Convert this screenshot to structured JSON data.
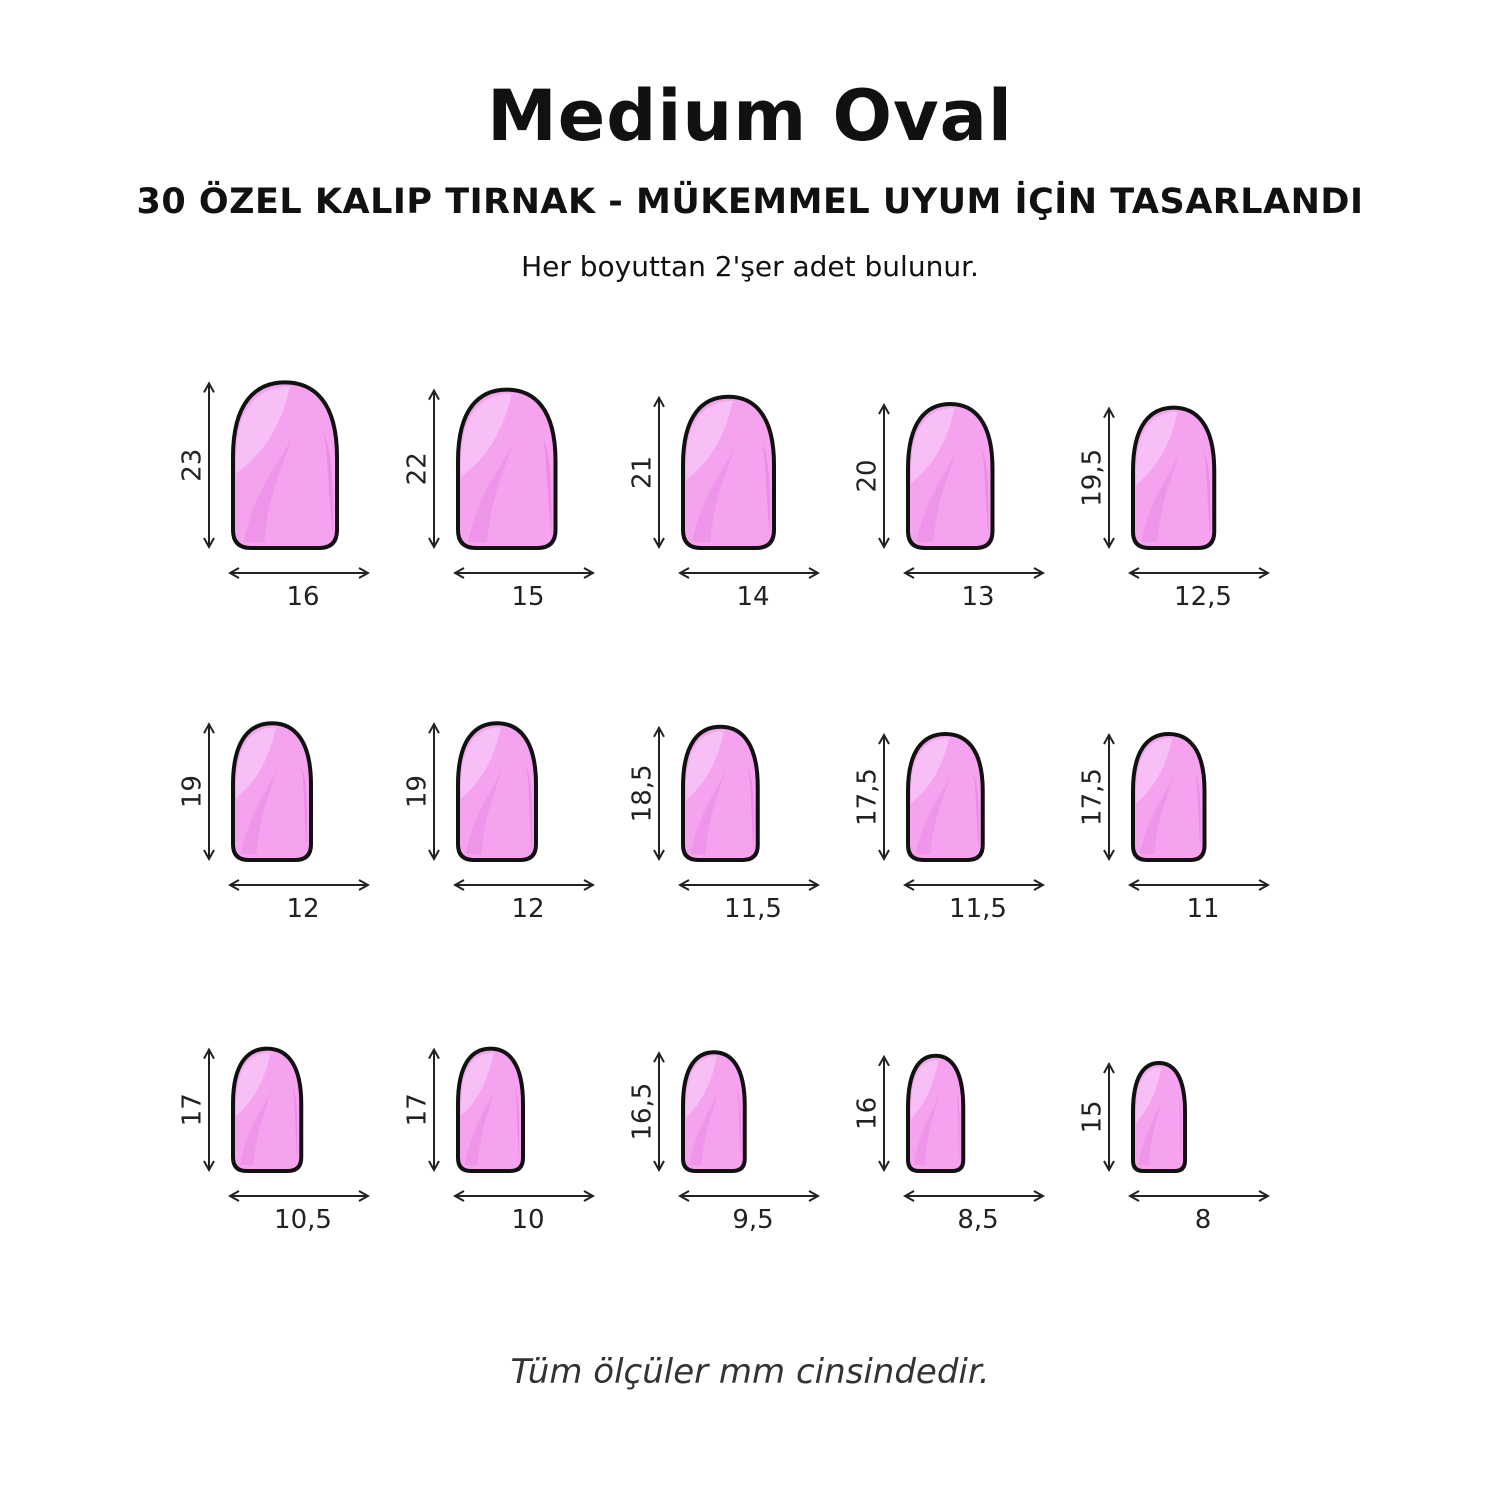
{
  "title": "Medium Oval",
  "subtitle": "30 ÖZEL KALIP TIRNAK - MÜKEMMEL UYUM İÇİN TASARLANDI",
  "note": "Her boyuttan 2'şer adet bulunur.",
  "footer": "Tüm ölçüler mm cinsindedir.",
  "colors": {
    "nail_fill": "#f5a3ef",
    "nail_outline": "#111111",
    "nail_highlight": "#f9c4f7",
    "nail_shade": "#e98be3"
  },
  "icon": "oval-nail-shape",
  "nails": [
    {
      "height": "23",
      "width": "16"
    },
    {
      "height": "22",
      "width": "15"
    },
    {
      "height": "21",
      "width": "14"
    },
    {
      "height": "20",
      "width": "13"
    },
    {
      "height": "19,5",
      "width": "12,5"
    },
    {
      "height": "19",
      "width": "12"
    },
    {
      "height": "19",
      "width": "12"
    },
    {
      "height": "18,5",
      "width": "11,5"
    },
    {
      "height": "17,5",
      "width": "11,5"
    },
    {
      "height": "17,5",
      "width": "11"
    },
    {
      "height": "17",
      "width": "10,5"
    },
    {
      "height": "17",
      "width": "10"
    },
    {
      "height": "16,5",
      "width": "9,5"
    },
    {
      "height": "16",
      "width": "8,5"
    },
    {
      "height": "15",
      "width": "8"
    }
  ]
}
